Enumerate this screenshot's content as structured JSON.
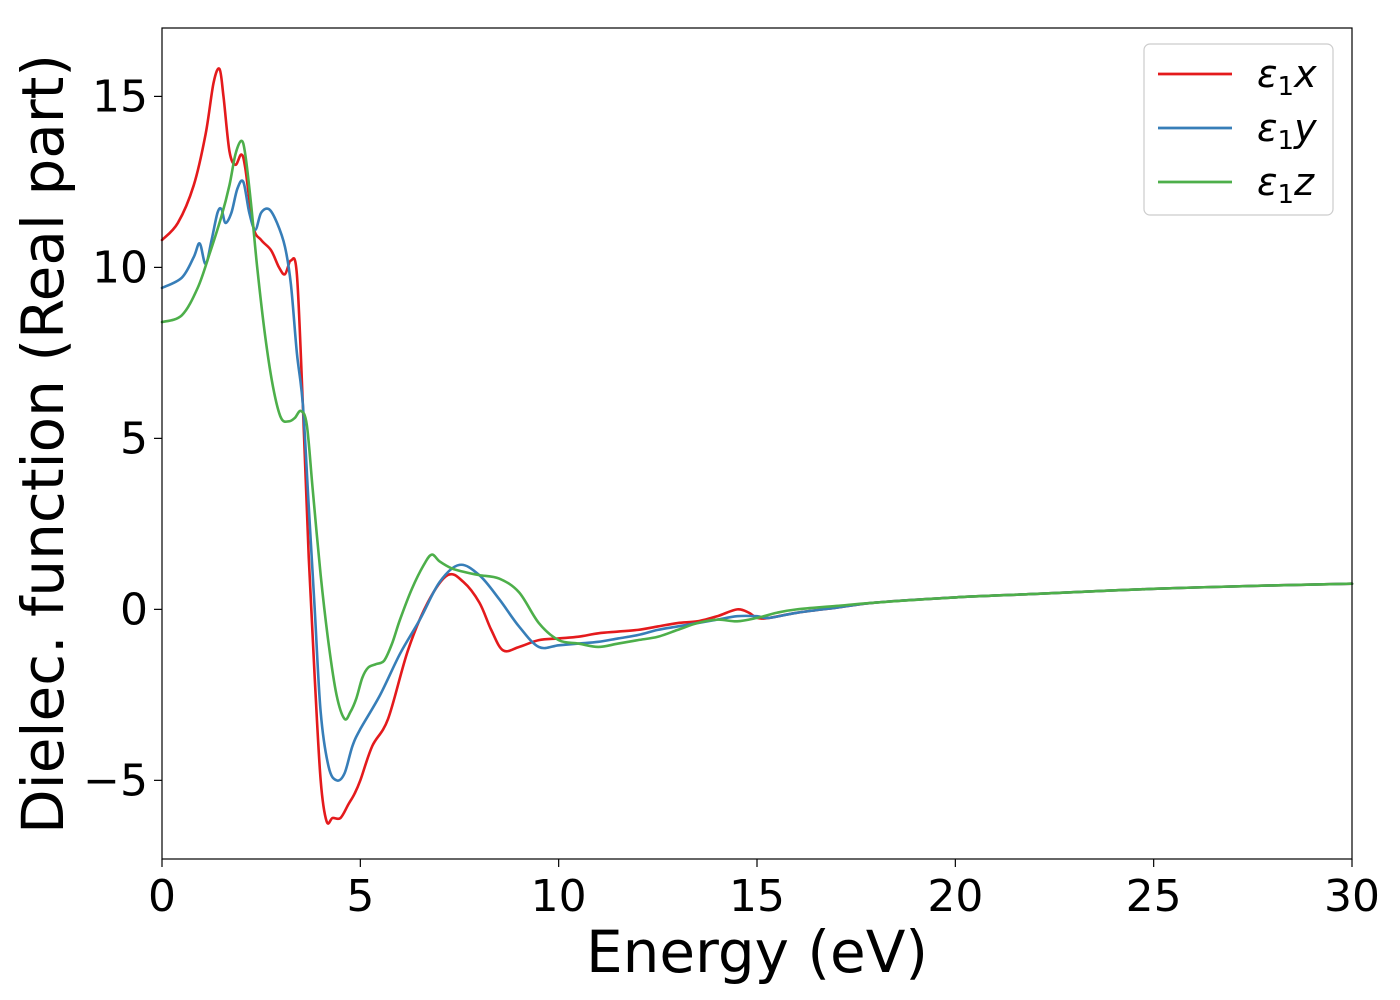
{
  "chart_data": {
    "type": "line",
    "title": "",
    "xlabel": "Energy (eV)",
    "ylabel": "Dielec. function (Real part)",
    "xlim": [
      0,
      30
    ],
    "ylim": [
      -7.3,
      17
    ],
    "xticks": [
      0,
      5,
      10,
      15,
      20,
      25,
      30
    ],
    "xtick_labels": [
      "0",
      "5",
      "10",
      "15",
      "20",
      "25",
      "30"
    ],
    "yticks": [
      -5,
      0,
      5,
      10,
      15
    ],
    "ytick_labels": [
      "−5",
      "0",
      "5",
      "10",
      "15"
    ],
    "grid": false,
    "legend_position": "top-right",
    "series": [
      {
        "name": "ε₁x",
        "legend_base": "ε",
        "legend_sub": "1",
        "legend_var": "x",
        "color": "#e41a1c",
        "x": [
          0,
          0.4,
          0.8,
          1.1,
          1.3,
          1.45,
          1.55,
          1.7,
          1.85,
          2.0,
          2.1,
          2.3,
          2.5,
          2.75,
          2.95,
          3.1,
          3.25,
          3.4,
          3.55,
          3.7,
          3.85,
          4.0,
          4.15,
          4.3,
          4.5,
          4.7,
          4.85,
          5.0,
          5.3,
          5.7,
          6.2,
          6.7,
          7.2,
          7.6,
          8.0,
          8.3,
          8.6,
          9.0,
          9.5,
          10.0,
          10.5,
          11.0,
          11.5,
          12.0,
          12.5,
          13.0,
          13.5,
          14.0,
          14.5,
          14.8,
          15.0,
          15.3,
          16.0,
          17.0,
          18.0,
          20.0,
          22.0,
          25.0,
          28.0,
          30.0
        ],
        "y": [
          10.8,
          11.3,
          12.4,
          13.9,
          15.4,
          15.8,
          15.0,
          13.4,
          13.0,
          13.3,
          12.9,
          11.2,
          10.8,
          10.5,
          10.0,
          9.8,
          10.2,
          9.8,
          6.0,
          1.5,
          -2.0,
          -5.0,
          -6.2,
          -6.1,
          -6.1,
          -5.7,
          -5.4,
          -5.0,
          -4.0,
          -3.2,
          -1.2,
          0.2,
          1.0,
          0.8,
          0.2,
          -0.6,
          -1.2,
          -1.1,
          -0.9,
          -0.85,
          -0.8,
          -0.7,
          -0.65,
          -0.6,
          -0.5,
          -0.4,
          -0.35,
          -0.2,
          0.0,
          -0.1,
          -0.25,
          -0.25,
          -0.1,
          0.05,
          0.2,
          0.35,
          0.45,
          0.6,
          0.7,
          0.75
        ]
      },
      {
        "name": "ε₁y",
        "legend_base": "ε",
        "legend_sub": "1",
        "legend_var": "y",
        "color": "#377eb8",
        "x": [
          0,
          0.5,
          0.8,
          0.95,
          1.1,
          1.25,
          1.4,
          1.5,
          1.6,
          1.75,
          1.9,
          2.05,
          2.2,
          2.35,
          2.5,
          2.7,
          2.9,
          3.1,
          3.25,
          3.4,
          3.55,
          3.7,
          3.85,
          4.0,
          4.2,
          4.4,
          4.6,
          4.8,
          5.0,
          5.5,
          6.0,
          6.5,
          7.0,
          7.5,
          8.0,
          8.5,
          9.0,
          9.5,
          10.0,
          10.5,
          11.0,
          11.5,
          12.0,
          12.5,
          13.0,
          13.5,
          14.0,
          14.5,
          15.0,
          15.3,
          16.0,
          17.0,
          18.0,
          20.0,
          22.0,
          25.0,
          28.0,
          30.0
        ],
        "y": [
          9.4,
          9.7,
          10.3,
          10.7,
          10.1,
          10.8,
          11.6,
          11.7,
          11.3,
          11.6,
          12.3,
          12.5,
          11.6,
          11.1,
          11.6,
          11.7,
          11.3,
          10.6,
          9.5,
          7.5,
          6.0,
          3.0,
          0.0,
          -3.0,
          -4.6,
          -5.0,
          -4.8,
          -4.0,
          -3.5,
          -2.5,
          -1.3,
          -0.3,
          0.8,
          1.3,
          1.0,
          0.3,
          -0.5,
          -1.1,
          -1.05,
          -1.0,
          -0.95,
          -0.85,
          -0.75,
          -0.6,
          -0.5,
          -0.4,
          -0.3,
          -0.2,
          -0.2,
          -0.25,
          -0.1,
          0.05,
          0.2,
          0.35,
          0.45,
          0.6,
          0.7,
          0.75
        ]
      },
      {
        "name": "ε₁z",
        "legend_base": "ε",
        "legend_sub": "1",
        "legend_var": "z",
        "color": "#4daf4a",
        "x": [
          0,
          0.5,
          0.9,
          1.2,
          1.5,
          1.7,
          1.85,
          2.0,
          2.1,
          2.25,
          2.4,
          2.6,
          2.8,
          3.0,
          3.2,
          3.35,
          3.5,
          3.65,
          3.8,
          4.0,
          4.2,
          4.4,
          4.6,
          4.75,
          4.9,
          5.05,
          5.2,
          5.4,
          5.6,
          5.8,
          6.0,
          6.3,
          6.6,
          6.8,
          7.0,
          7.3,
          7.6,
          8.0,
          8.5,
          9.0,
          9.5,
          10.0,
          10.5,
          11.0,
          11.5,
          12.0,
          12.5,
          13.0,
          13.5,
          14.0,
          14.5,
          15.0,
          15.5,
          16.0,
          17.0,
          18.0,
          20.0,
          22.0,
          25.0,
          28.0,
          30.0
        ],
        "y": [
          8.4,
          8.6,
          9.4,
          10.4,
          11.5,
          12.4,
          13.3,
          13.7,
          13.3,
          11.8,
          10.0,
          8.0,
          6.5,
          5.6,
          5.5,
          5.6,
          5.8,
          5.4,
          3.5,
          1.0,
          -1.0,
          -2.5,
          -3.2,
          -3.0,
          -2.6,
          -2.0,
          -1.7,
          -1.6,
          -1.5,
          -1.0,
          -0.3,
          0.6,
          1.3,
          1.6,
          1.4,
          1.2,
          1.1,
          1.0,
          0.9,
          0.5,
          -0.4,
          -0.9,
          -1.0,
          -1.1,
          -1.0,
          -0.9,
          -0.8,
          -0.6,
          -0.4,
          -0.3,
          -0.35,
          -0.25,
          -0.1,
          0.0,
          0.1,
          0.2,
          0.35,
          0.45,
          0.6,
          0.7,
          0.75
        ]
      }
    ]
  }
}
